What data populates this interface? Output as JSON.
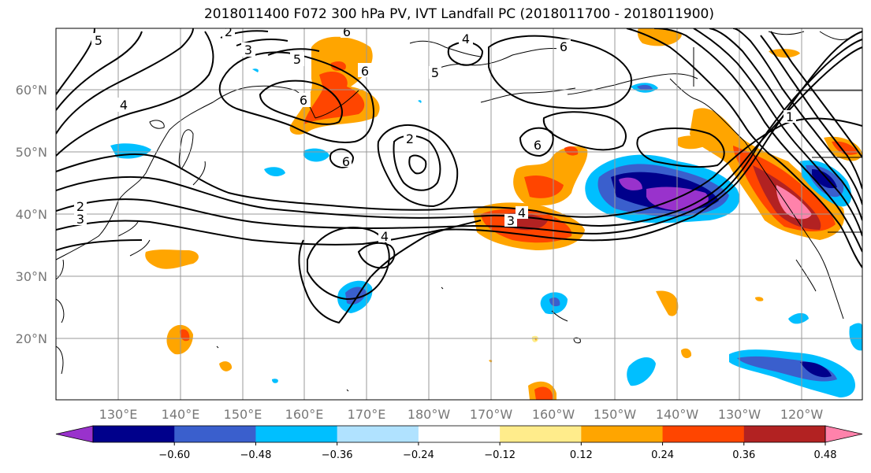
{
  "title": "2018011400 F072 300 hPa PV, IVT Landfall PC (2018011700 - 2018011900)",
  "map": {
    "lat_labels": [
      "60°N",
      "50°N",
      "40°N",
      "30°N",
      "20°N"
    ],
    "lon_labels": [
      "130°E",
      "140°E",
      "150°E",
      "160°E",
      "170°E",
      "180°W",
      "170°W",
      "160°W",
      "150°W",
      "140°W",
      "130°W",
      "120°W"
    ],
    "contour_labels": [
      "5",
      "2",
      "3",
      "4",
      "6",
      "5",
      "5",
      "6",
      "6",
      "4",
      "2",
      "3",
      "6",
      "6",
      "2",
      "4",
      "3",
      "4",
      "1",
      "6"
    ]
  },
  "colorbar": {
    "tick_labels": [
      "−0.60",
      "−0.48",
      "−0.36",
      "−0.24",
      "−0.12",
      "0.12",
      "0.24",
      "0.36",
      "0.48",
      "0.60"
    ],
    "colors": [
      "#9932CC",
      "#00008B",
      "#3A5FCD",
      "#00BFFF",
      "#B0E2FF",
      "#FFFFFF",
      "#FFEC8B",
      "#FFA500",
      "#FF4500",
      "#B22222",
      "#FF82AB"
    ]
  },
  "colors": {
    "neg_strong": "#9932CC",
    "neg_dark": "#00008B",
    "neg_mid": "#3A5FCD",
    "neg_light": "#00BFFF",
    "neg_pale": "#B0E2FF",
    "pos_pale": "#FFEC8B",
    "pos_light": "#FFA500",
    "pos_mid": "#FF4500",
    "pos_dark": "#B22222",
    "pos_strong": "#FF82AB"
  }
}
